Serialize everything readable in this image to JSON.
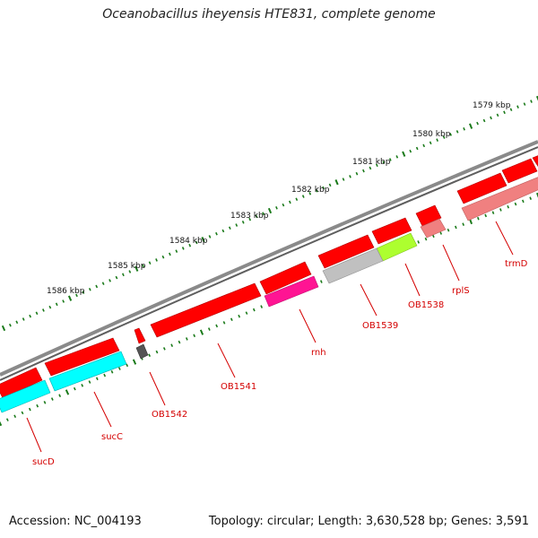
{
  "title": "Oceanobacillus iheyensis HTE831, complete genome",
  "accession": "Accession: NC_004193",
  "summary": "Topology: circular; Length: 3,630,528 bp; Genes: 3,591",
  "kbp_labels": [
    "1579 kbp",
    "1580 kbp",
    "1581 kbp",
    "1582 kbp",
    "1583 kbp",
    "1584 kbp",
    "1585 kbp",
    "1586 kbp"
  ],
  "genes": [
    {
      "name": "trmD",
      "color": "#f08080"
    },
    {
      "name": "rplS",
      "color": "#f08080"
    },
    {
      "name": "OB1538",
      "color": "#adff2f"
    },
    {
      "name": "OB1539",
      "color": "#c0c0c0"
    },
    {
      "name": "rnh",
      "color": "#ff1493"
    },
    {
      "name": "OB1541",
      "color": "#ff0000"
    },
    {
      "name": "OB1542",
      "color": "#555555"
    },
    {
      "name": "sucC",
      "color": "#00ffff"
    },
    {
      "name": "sucD",
      "color": "#00ffff"
    }
  ],
  "colors": {
    "cds": "#ff0000",
    "backbone": "#808080",
    "ticks": "#1a7a1a",
    "label": "#d40000"
  }
}
